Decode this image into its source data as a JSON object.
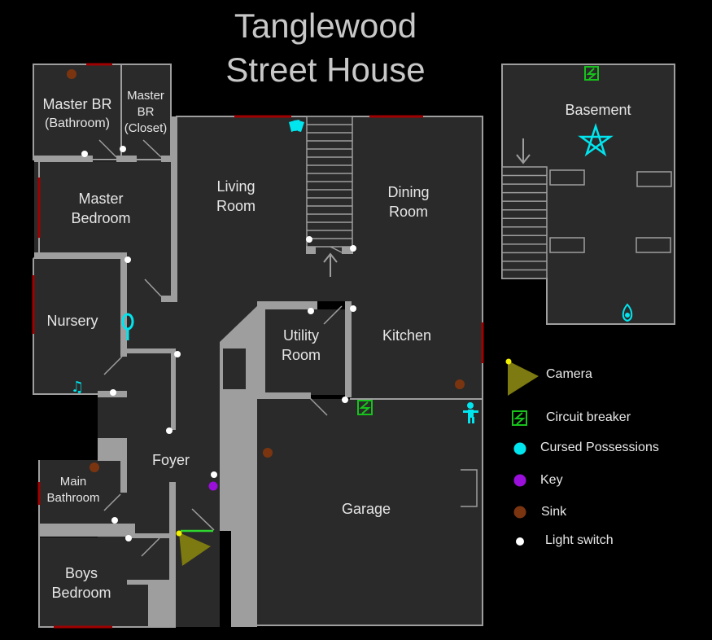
{
  "title": {
    "line1": "Tanglewood",
    "line2": "Street House"
  },
  "rooms": {
    "master_br_bathroom": {
      "name": "Master BR",
      "sub": "(Bathroom)"
    },
    "master_br_closet": {
      "l1": "Master",
      "l2": "BR",
      "l3": "(Closet)"
    },
    "master_bedroom": {
      "l1": "Master",
      "l2": "Bedroom"
    },
    "living_room": {
      "l1": "Living",
      "l2": "Room"
    },
    "dining_room": {
      "l1": "Dining",
      "l2": "Room"
    },
    "basement": {
      "name": "Basement"
    },
    "nursery": {
      "name": "Nursery"
    },
    "utility_room": {
      "l1": "Utility",
      "l2": "Room"
    },
    "kitchen": {
      "name": "Kitchen"
    },
    "foyer": {
      "name": "Foyer"
    },
    "main_bathroom": {
      "l1": "Main",
      "l2": "Bathroom"
    },
    "garage": {
      "name": "Garage"
    },
    "boys_bedroom": {
      "l1": "Boys",
      "l2": "Bedroom"
    }
  },
  "legend": [
    {
      "label": "Camera",
      "icon": "camera-icon",
      "color": "#7c7a10"
    },
    {
      "label": "Circuit breaker",
      "icon": "circuit-breaker-icon",
      "color": "#17c21c"
    },
    {
      "label": "Cursed Possessions",
      "icon": "cursed-possession-dot",
      "color": "#00e5ee"
    },
    {
      "label": "Key",
      "icon": "key-dot",
      "color": "#9a0fd9"
    },
    {
      "label": "Sink",
      "icon": "sink-dot",
      "color": "#7a3510"
    },
    {
      "label": "Light switch",
      "icon": "light-switch-dot",
      "color": "#ffffff"
    }
  ],
  "colors": {
    "floor": "#2a2a2a",
    "wall": "#9e9e9e",
    "window": "#a00000",
    "cursed": "#00e5ee",
    "breaker": "#17c21c",
    "sink": "#7a3510",
    "key": "#9a0fd9",
    "camera": "#7c7a10",
    "switch": "#ffffff",
    "door_open": "#2fd62f"
  }
}
